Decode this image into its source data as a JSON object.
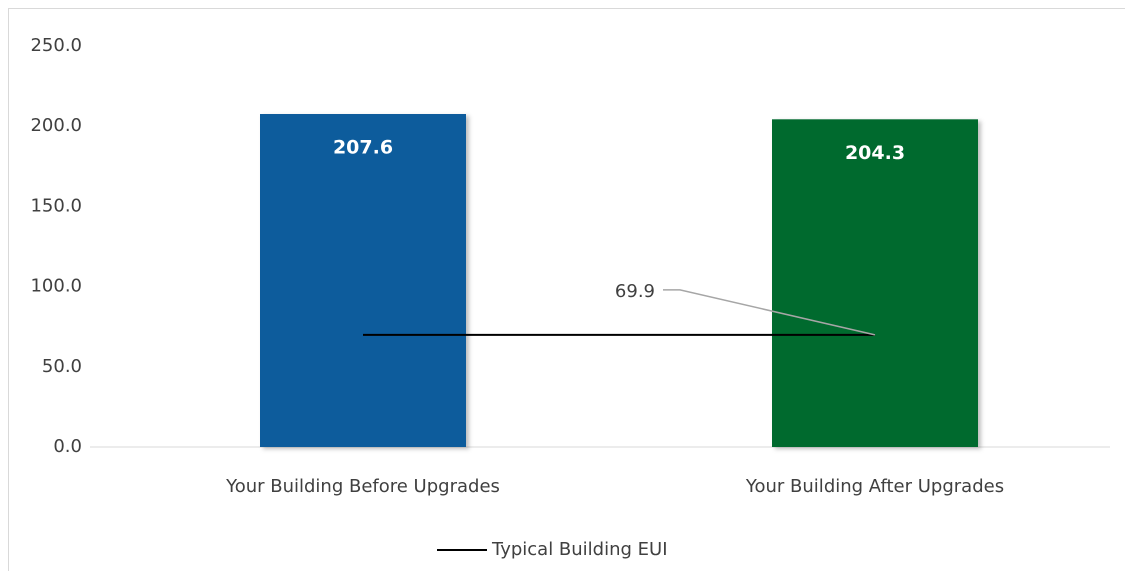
{
  "chart_data": {
    "type": "bar",
    "categories": [
      "Your Building Before Upgrades",
      "Your Building After Upgrades"
    ],
    "values": [
      207.6,
      204.3
    ],
    "colors": [
      "#0f5b9c",
      "#056b2e"
    ],
    "line": {
      "name": "Typical Building EUI",
      "values": [
        69.9,
        69.9
      ],
      "color": "#000000",
      "label_index": 1
    },
    "ylim": [
      0,
      250
    ],
    "yticks": [
      {
        "value": 0,
        "label": "0.0"
      },
      {
        "value": 50,
        "label": "50.0"
      },
      {
        "value": 100,
        "label": "100.0"
      },
      {
        "value": 150,
        "label": "150.0"
      },
      {
        "value": 200,
        "label": "200.0"
      },
      {
        "value": 250,
        "label": "250.0"
      }
    ],
    "grid": false,
    "legend": "bottom"
  }
}
